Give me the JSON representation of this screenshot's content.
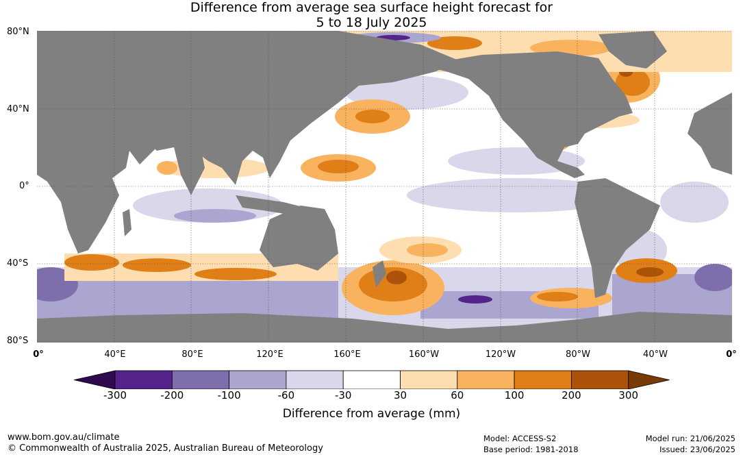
{
  "title": {
    "line1": "Difference from average sea surface height forecast for",
    "line2": "5 to 18 July 2025"
  },
  "map": {
    "latitude_labels": [
      "80°N",
      "40°N",
      "0°",
      "40°S",
      "80°S"
    ],
    "longitude_labels": [
      "0°",
      "40°E",
      "80°E",
      "120°E",
      "160°E",
      "160°W",
      "120°W",
      "80°W",
      "40°W",
      "0°"
    ],
    "land_color": "#808080",
    "gridline_color": "#555555"
  },
  "colorbar": {
    "label": "Difference from average (mm)",
    "ticks": [
      "-300",
      "-200",
      "-100",
      "-60",
      "-30",
      "30",
      "60",
      "100",
      "200",
      "300"
    ],
    "colors": [
      "#2f0a4d",
      "#54248b",
      "#7e6eab",
      "#aba6cf",
      "#d9d8eb",
      "#ffffff",
      "#fedeb0",
      "#f9b25e",
      "#e07f17",
      "#ad5309",
      "#7a3a06"
    ]
  },
  "footer": {
    "website": "www.bom.gov.au/climate",
    "copyright": "© Commonwealth of Australia 2025, Australian Bureau of Meteorology",
    "model": "Model: ACCESS-S2",
    "base_period": "Base period: 1981-2018",
    "model_run": "Model run: 21/06/2025",
    "issued": "Issued: 23/06/2025"
  }
}
